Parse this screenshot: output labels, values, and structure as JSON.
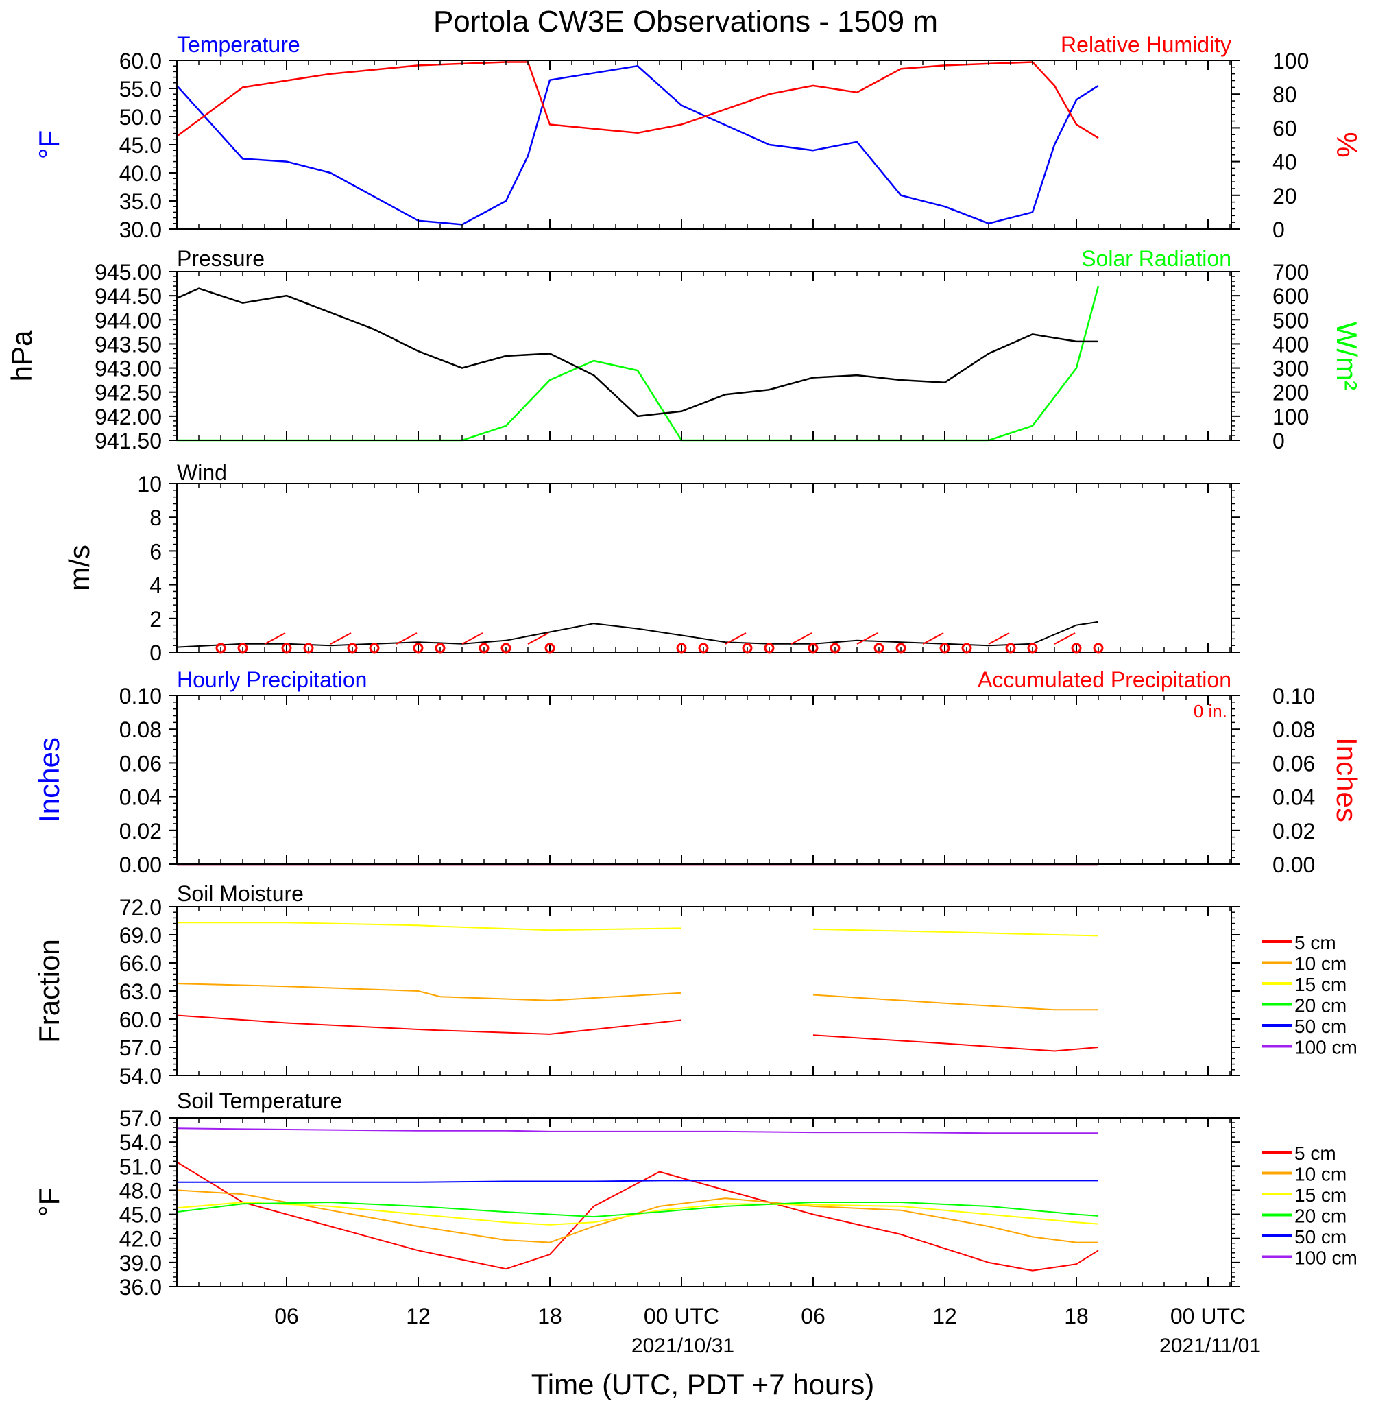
{
  "title": "Portola CW3E Observations - 1509 m",
  "x_axis": {
    "label": "Time (UTC, PDT +7 hours)",
    "tick_labels": [
      "06",
      "12",
      "18",
      "00 UTC",
      "06",
      "12",
      "18",
      "00 UTC"
    ],
    "date_labels": [
      "2021/10/31",
      "2021/11/01"
    ]
  },
  "panels": {
    "temperature": {
      "left_title": "Temperature",
      "right_title": "Relative Humidity",
      "left_unit": "°F",
      "right_unit": "%",
      "left_ticks": [
        "60.0",
        "55.0",
        "50.0",
        "45.0",
        "40.0",
        "35.0",
        "30.0"
      ],
      "right_ticks": [
        "100",
        "80",
        "60",
        "40",
        "20",
        "0"
      ]
    },
    "pressure": {
      "left_title": "Pressure",
      "right_title": "Solar Radiation",
      "left_unit": "hPa",
      "right_unit": "W/m²",
      "left_ticks": [
        "945.00",
        "944.50",
        "944.00",
        "943.50",
        "943.00",
        "942.50",
        "942.00",
        "941.50"
      ],
      "right_ticks": [
        "700",
        "600",
        "500",
        "400",
        "300",
        "200",
        "100",
        "0"
      ]
    },
    "wind": {
      "left_title": "Wind",
      "left_unit": "m/s",
      "left_ticks": [
        "10",
        "8",
        "6",
        "4",
        "2",
        "0"
      ]
    },
    "precip": {
      "left_title": "Hourly Precipitation",
      "right_title": "Accumulated Precipitation",
      "annotation": "0 in.",
      "left_unit": "Inches",
      "right_unit": "Inches",
      "left_ticks": [
        "0.10",
        "0.08",
        "0.06",
        "0.04",
        "0.02",
        "0.00"
      ],
      "right_ticks": [
        "0.10",
        "0.08",
        "0.06",
        "0.04",
        "0.02",
        "0.00"
      ]
    },
    "soil_moisture": {
      "left_title": "Soil Moisture",
      "left_unit": "Fraction",
      "left_ticks": [
        "72.0",
        "69.0",
        "66.0",
        "63.0",
        "60.0",
        "57.0",
        "54.0"
      ]
    },
    "soil_temperature": {
      "left_title": "Soil Temperature",
      "left_unit": "°F",
      "left_ticks": [
        "57.0",
        "54.0",
        "51.0",
        "48.0",
        "45.0",
        "42.0",
        "39.0",
        "36.0"
      ]
    }
  },
  "legend": {
    "entries": [
      "5 cm",
      "10 cm",
      "15 cm",
      "20 cm",
      "50 cm",
      "100 cm"
    ],
    "colors": [
      "#ff0000",
      "#ffa500",
      "#ffff00",
      "#00ff00",
      "#0000ff",
      "#a020f0"
    ]
  },
  "chart_data": [
    {
      "type": "line",
      "title": "Temperature",
      "x": [
        "2021-10-30 01:00",
        "2021-10-30 04:00",
        "2021-10-30 06:00",
        "2021-10-30 08:00",
        "2021-10-30 12:00",
        "2021-10-30 14:00",
        "2021-10-30 16:00",
        "2021-10-30 17:00",
        "2021-10-30 18:00",
        "2021-10-30 22:00",
        "2021-10-31 00:00",
        "2021-10-31 04:00",
        "2021-10-31 06:00",
        "2021-10-31 08:00",
        "2021-10-31 10:00",
        "2021-10-31 12:00",
        "2021-10-31 14:00",
        "2021-10-31 16:00",
        "2021-10-31 17:00",
        "2021-10-31 18:00",
        "2021-10-31 19:00"
      ],
      "series": [
        {
          "name": "Temperature",
          "axis": "left",
          "unit": "°F",
          "color": "#0000ff",
          "values": [
            55.5,
            42.5,
            42.0,
            40.0,
            31.5,
            30.8,
            35.0,
            43.0,
            56.5,
            59.0,
            52.0,
            45.0,
            44.0,
            45.5,
            36.0,
            34.0,
            31.0,
            33.0,
            45.0,
            53.0,
            55.5
          ]
        },
        {
          "name": "Relative Humidity",
          "axis": "right",
          "unit": "%",
          "color": "#ff0000",
          "values": [
            55,
            84,
            88,
            92,
            97,
            98,
            99,
            99,
            62,
            57,
            62,
            80,
            85,
            81,
            95,
            97,
            98,
            99,
            85,
            62,
            54
          ]
        }
      ],
      "ylim_left": [
        30,
        60
      ],
      "ylim_right": [
        0,
        100
      ]
    },
    {
      "type": "line",
      "title": "Pressure",
      "x": [
        "2021-10-30 01:00",
        "2021-10-30 02:00",
        "2021-10-30 04:00",
        "2021-10-30 06:00",
        "2021-10-30 08:00",
        "2021-10-30 10:00",
        "2021-10-30 12:00",
        "2021-10-30 14:00",
        "2021-10-30 16:00",
        "2021-10-30 18:00",
        "2021-10-30 20:00",
        "2021-10-30 22:00",
        "2021-10-31 00:00",
        "2021-10-31 02:00",
        "2021-10-31 04:00",
        "2021-10-31 06:00",
        "2021-10-31 08:00",
        "2021-10-31 10:00",
        "2021-10-31 12:00",
        "2021-10-31 14:00",
        "2021-10-31 16:00",
        "2021-10-31 18:00",
        "2021-10-31 19:00"
      ],
      "series": [
        {
          "name": "Pressure",
          "axis": "left",
          "unit": "hPa",
          "color": "#000000",
          "values": [
            944.45,
            944.65,
            944.35,
            944.5,
            944.15,
            943.8,
            943.35,
            943.0,
            943.25,
            943.3,
            942.85,
            942.0,
            942.1,
            942.45,
            942.55,
            942.8,
            942.85,
            942.75,
            942.7,
            943.3,
            943.7,
            943.55,
            943.55
          ]
        },
        {
          "name": "Solar Radiation",
          "axis": "right",
          "unit": "W/m²",
          "color": "#00ff00",
          "values": [
            0,
            0,
            0,
            0,
            0,
            0,
            0,
            0,
            60,
            250,
            330,
            290,
            0,
            0,
            0,
            0,
            0,
            0,
            0,
            0,
            60,
            300,
            640
          ]
        }
      ],
      "ylim_left": [
        941.5,
        945.0
      ],
      "ylim_right": [
        0,
        700
      ]
    },
    {
      "type": "line",
      "title": "Wind",
      "x": [
        "2021-10-30 01:00",
        "2021-10-30 04:00",
        "2021-10-30 06:00",
        "2021-10-30 08:00",
        "2021-10-30 10:00",
        "2021-10-30 12:00",
        "2021-10-30 14:00",
        "2021-10-30 16:00",
        "2021-10-30 18:00",
        "2021-10-30 20:00",
        "2021-10-30 22:00",
        "2021-10-31 00:00",
        "2021-10-31 02:00",
        "2021-10-31 04:00",
        "2021-10-31 06:00",
        "2021-10-31 08:00",
        "2021-10-31 10:00",
        "2021-10-31 12:00",
        "2021-10-31 14:00",
        "2021-10-31 16:00",
        "2021-10-31 18:00",
        "2021-10-31 19:00"
      ],
      "series": [
        {
          "name": "Wind Speed",
          "axis": "left",
          "unit": "m/s",
          "color": "#000000",
          "values": [
            0.3,
            0.5,
            0.5,
            0.4,
            0.5,
            0.6,
            0.5,
            0.7,
            1.2,
            1.7,
            1.4,
            1.0,
            0.6,
            0.5,
            0.5,
            0.7,
            0.6,
            0.5,
            0.4,
            0.5,
            1.6,
            1.8
          ]
        }
      ],
      "ylim": [
        0,
        10
      ]
    },
    {
      "type": "line",
      "title": "Hourly Precipitation",
      "x": [
        "2021-10-30 01:00",
        "2021-10-31 19:00"
      ],
      "series": [
        {
          "name": "Hourly Precipitation",
          "axis": "left",
          "unit": "in",
          "color": "#0000ff",
          "values": [
            0,
            0
          ]
        },
        {
          "name": "Accumulated Precipitation",
          "axis": "right",
          "unit": "in",
          "color": "#ff0000",
          "values": [
            0,
            0
          ]
        }
      ],
      "ylim_left": [
        0,
        0.1
      ],
      "ylim_right": [
        0,
        0.1
      ]
    },
    {
      "type": "line",
      "title": "Soil Moisture",
      "x": [
        "2021-10-30 01:00",
        "2021-10-30 06:00",
        "2021-10-30 12:00",
        "2021-10-30 13:00",
        "2021-10-30 18:00",
        "2021-10-31 00:00",
        "2021-10-31 06:00",
        "2021-10-31 12:00",
        "2021-10-31 17:00",
        "2021-10-31 19:00"
      ],
      "series": [
        {
          "name": "5 cm",
          "color": "#ff0000",
          "values": [
            60.4,
            59.6,
            58.9,
            58.8,
            58.4,
            59.9,
            58.3,
            57.4,
            56.6,
            57.0
          ]
        },
        {
          "name": "10 cm",
          "color": "#ffa500",
          "values": [
            63.8,
            63.5,
            63.0,
            62.4,
            62.0,
            62.8,
            62.6,
            61.7,
            61.0,
            61.0
          ]
        },
        {
          "name": "15 cm",
          "color": "#ffff00",
          "values": [
            70.3,
            70.3,
            70.0,
            69.9,
            69.5,
            69.7,
            69.6,
            69.3,
            69.0,
            68.9
          ]
        }
      ],
      "gap": [
        "2021-10-31 00:00",
        "2021-10-31 06:00"
      ],
      "ylim": [
        54,
        72
      ]
    },
    {
      "type": "line",
      "title": "Soil Temperature",
      "x": [
        "2021-10-30 01:00",
        "2021-10-30 04:00",
        "2021-10-30 08:00",
        "2021-10-30 12:00",
        "2021-10-30 16:00",
        "2021-10-30 18:00",
        "2021-10-30 20:00",
        "2021-10-30 23:00",
        "2021-10-31 02:00",
        "2021-10-31 06:00",
        "2021-10-31 10:00",
        "2021-10-31 14:00",
        "2021-10-31 16:00",
        "2021-10-31 18:00",
        "2021-10-31 19:00"
      ],
      "series": [
        {
          "name": "5 cm",
          "color": "#ff0000",
          "values": [
            51.5,
            46.5,
            43.5,
            40.5,
            38.2,
            40.0,
            46.0,
            50.3,
            48.0,
            45.0,
            42.5,
            39.0,
            38.0,
            38.8,
            40.5
          ]
        },
        {
          "name": "10 cm",
          "color": "#ffa500",
          "values": [
            48.0,
            47.5,
            45.5,
            43.5,
            41.8,
            41.5,
            43.5,
            46.0,
            47.0,
            46.0,
            45.5,
            43.5,
            42.2,
            41.5,
            41.5
          ]
        },
        {
          "name": "15 cm",
          "color": "#ffff00",
          "values": [
            45.8,
            46.5,
            46.0,
            45.0,
            44.0,
            43.7,
            44.0,
            45.5,
            46.3,
            46.2,
            46.0,
            45.0,
            44.5,
            44.0,
            43.8
          ]
        },
        {
          "name": "20 cm",
          "color": "#00ff00",
          "values": [
            45.3,
            46.3,
            46.5,
            46.0,
            45.3,
            45.0,
            44.7,
            45.3,
            46.0,
            46.5,
            46.5,
            46.0,
            45.5,
            45.0,
            44.8
          ]
        },
        {
          "name": "50 cm",
          "color": "#0000ff",
          "values": [
            49.0,
            49.0,
            49.0,
            49.0,
            49.1,
            49.1,
            49.1,
            49.2,
            49.2,
            49.2,
            49.2,
            49.2,
            49.2,
            49.2,
            49.2
          ]
        },
        {
          "name": "100 cm",
          "color": "#a020f0",
          "values": [
            55.7,
            55.6,
            55.5,
            55.4,
            55.4,
            55.3,
            55.3,
            55.3,
            55.3,
            55.2,
            55.2,
            55.1,
            55.1,
            55.1,
            55.1
          ]
        }
      ],
      "ylim": [
        36,
        57
      ]
    }
  ]
}
